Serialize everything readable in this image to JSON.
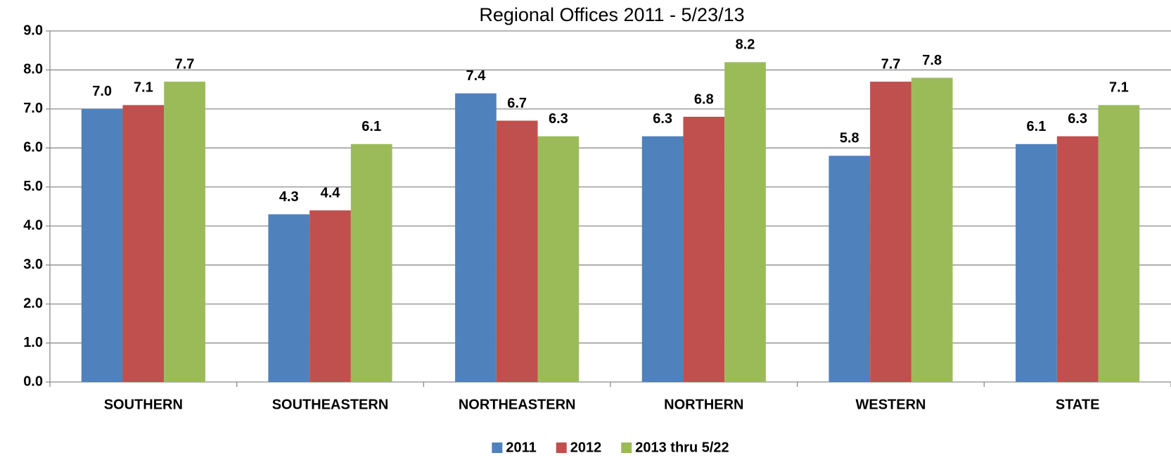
{
  "chart_data": {
    "type": "bar",
    "title": "Regional Offices 2011 - 5/23/13",
    "categories": [
      "SOUTHERN",
      "SOUTHEASTERN",
      "NORTHEASTERN",
      "NORTHERN",
      "WESTERN",
      "STATE"
    ],
    "series": [
      {
        "name": "2011",
        "color": "#4f81bd",
        "values": [
          7.0,
          4.3,
          7.4,
          6.3,
          5.8,
          6.1
        ],
        "value_labels": [
          "7.0",
          "4.3",
          "7.4",
          "6.3",
          "5.8",
          "6.1"
        ]
      },
      {
        "name": "2012",
        "color": "#c0504d",
        "values": [
          7.1,
          4.4,
          6.7,
          6.8,
          7.7,
          6.3
        ],
        "value_labels": [
          "7.1",
          "4.4",
          "6.7",
          "6.8",
          "7.7",
          "6.3"
        ]
      },
      {
        "name": "2013 thru 5/22",
        "color": "#9bbb59",
        "values": [
          7.7,
          6.1,
          6.3,
          8.2,
          7.8,
          7.1
        ],
        "value_labels": [
          "7.7",
          "6.1",
          "6.3",
          "8.2",
          "7.8",
          "7.1"
        ]
      }
    ],
    "ylim": [
      0,
      9
    ],
    "yticks": [
      {
        "value": 0,
        "label": "0.0"
      },
      {
        "value": 1,
        "label": "1.0"
      },
      {
        "value": 2,
        "label": "2.0"
      },
      {
        "value": 3,
        "label": "3.0"
      },
      {
        "value": 4,
        "label": "4.0"
      },
      {
        "value": 5,
        "label": "5.0"
      },
      {
        "value": 6,
        "label": "6.0"
      },
      {
        "value": 7,
        "label": "7.0"
      },
      {
        "value": 8,
        "label": "8.0"
      },
      {
        "value": 9,
        "label": "9.0"
      }
    ],
    "grid": true,
    "legend": "bottom"
  }
}
